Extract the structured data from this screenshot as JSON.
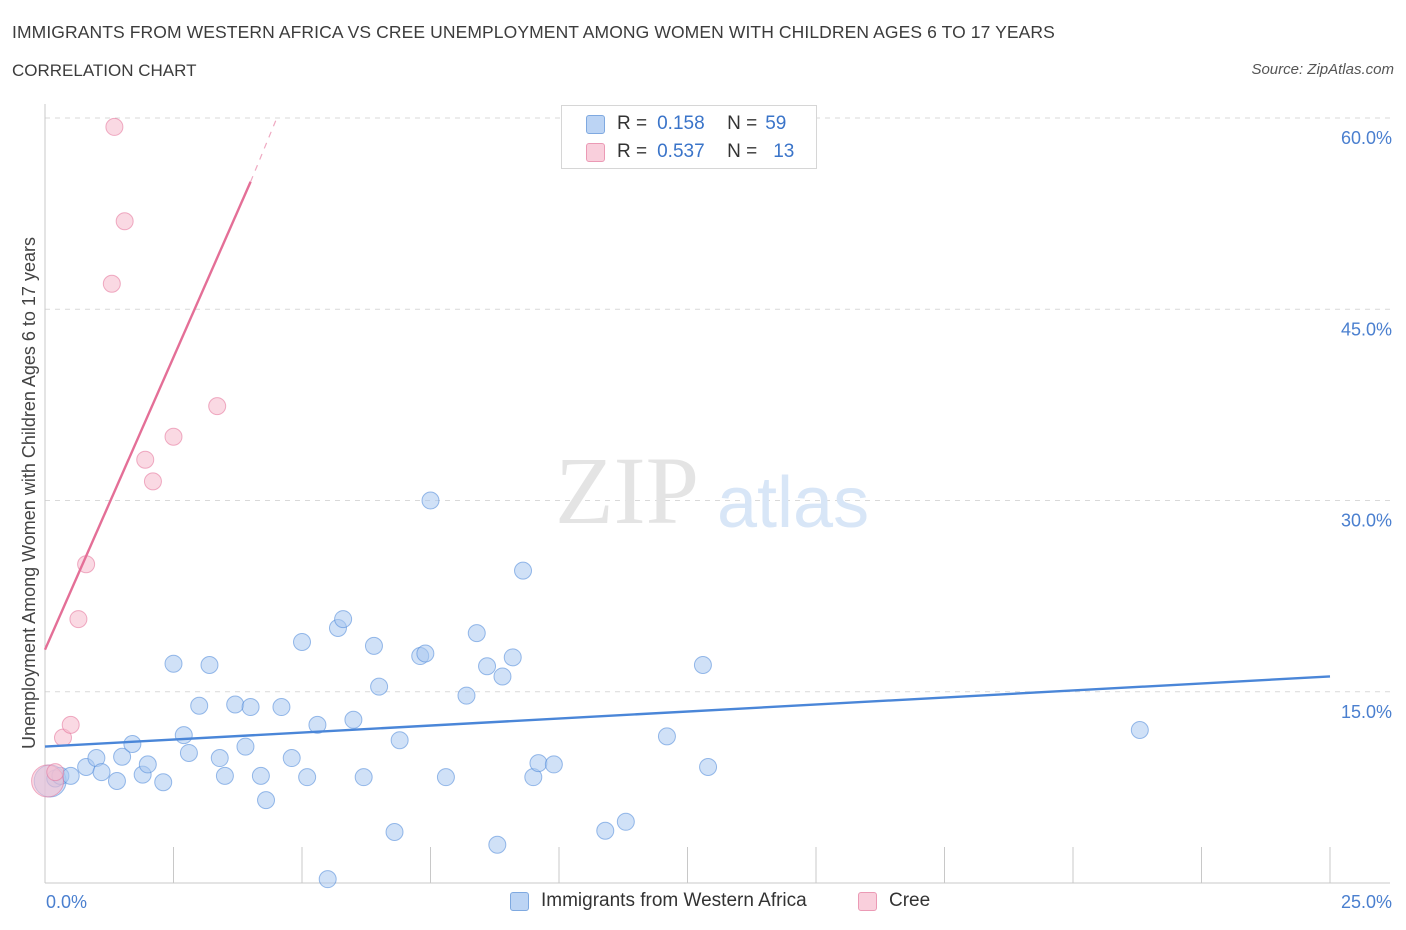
{
  "header": {
    "title": "IMMIGRANTS FROM WESTERN AFRICA VS CREE UNEMPLOYMENT AMONG WOMEN WITH CHILDREN AGES 6 TO 17 YEARS",
    "subtitle": "CORRELATION CHART",
    "source": "Source: ZipAtlas.com"
  },
  "legend": {
    "rows": [
      {
        "r_label": "R =",
        "r_value": "0.158",
        "n_label": "N =",
        "n_value": "59",
        "color": "#a9c8f0"
      },
      {
        "r_label": "R =",
        "r_value": "0.537",
        "n_label": "N =",
        "n_value": "13",
        "color": "#f6bfd0"
      }
    ]
  },
  "watermark": {
    "zip": "ZIP",
    "atlas": "atlas"
  },
  "chart_data": {
    "type": "scatter",
    "ylabel": "Unemployment Among Women with Children Ages 6 to 17 years",
    "xlim": [
      0,
      25
    ],
    "ylim": [
      0,
      60
    ],
    "x_tick_labels": [
      "0.0%",
      "25.0%"
    ],
    "y_tick_labels": [
      {
        "value": 15,
        "label": "15.0%"
      },
      {
        "value": 30,
        "label": "30.0%"
      },
      {
        "value": 45,
        "label": "45.0%"
      },
      {
        "value": 60,
        "label": "60.0%"
      }
    ],
    "grid": true,
    "series": [
      {
        "name": "Immigrants from Western Africa",
        "color": "#4a86d8",
        "fill": "#a9c8f0",
        "points": [
          [
            0.1,
            8.0
          ],
          [
            0.2,
            8.2
          ],
          [
            0.3,
            8.4
          ],
          [
            0.5,
            8.4
          ],
          [
            0.8,
            9.1
          ],
          [
            1.0,
            9.8
          ],
          [
            1.1,
            8.7
          ],
          [
            1.4,
            8.0
          ],
          [
            1.5,
            9.9
          ],
          [
            1.7,
            10.9
          ],
          [
            1.9,
            8.5
          ],
          [
            2.0,
            9.3
          ],
          [
            2.3,
            7.9
          ],
          [
            2.5,
            17.2
          ],
          [
            2.7,
            11.6
          ],
          [
            2.8,
            10.2
          ],
          [
            3.0,
            13.9
          ],
          [
            3.2,
            17.1
          ],
          [
            3.4,
            9.8
          ],
          [
            3.5,
            8.4
          ],
          [
            3.7,
            14.0
          ],
          [
            3.9,
            10.7
          ],
          [
            4.0,
            13.8
          ],
          [
            4.2,
            8.4
          ],
          [
            4.3,
            6.5
          ],
          [
            4.6,
            13.8
          ],
          [
            4.8,
            9.8
          ],
          [
            5.0,
            18.9
          ],
          [
            5.1,
            8.3
          ],
          [
            5.3,
            12.4
          ],
          [
            5.5,
            0.3
          ],
          [
            5.7,
            20.0
          ],
          [
            5.8,
            20.7
          ],
          [
            6.0,
            12.8
          ],
          [
            6.2,
            8.3
          ],
          [
            6.4,
            18.6
          ],
          [
            6.5,
            15.4
          ],
          [
            6.8,
            4.0
          ],
          [
            6.9,
            11.2
          ],
          [
            7.3,
            17.8
          ],
          [
            7.4,
            18.0
          ],
          [
            7.8,
            8.3
          ],
          [
            8.2,
            14.7
          ],
          [
            8.4,
            19.6
          ],
          [
            8.6,
            17.0
          ],
          [
            8.8,
            3.0
          ],
          [
            8.9,
            16.2
          ],
          [
            9.1,
            17.7
          ],
          [
            9.3,
            24.5
          ],
          [
            9.5,
            8.3
          ],
          [
            9.6,
            9.4
          ],
          [
            9.9,
            9.3
          ],
          [
            10.9,
            4.1
          ],
          [
            11.3,
            4.8
          ],
          [
            12.1,
            11.5
          ],
          [
            12.8,
            17.1
          ],
          [
            12.9,
            9.1
          ],
          [
            21.3,
            12.0
          ],
          [
            7.5,
            30.0
          ]
        ],
        "trend": {
          "x": [
            0,
            25
          ],
          "y": [
            10.7,
            16.2
          ]
        }
      },
      {
        "name": "Cree",
        "color": "#e46f97",
        "fill": "#f6bfd0",
        "points": [
          [
            0.05,
            8.0
          ],
          [
            0.2,
            8.7
          ],
          [
            0.35,
            11.4
          ],
          [
            0.5,
            12.4
          ],
          [
            0.65,
            20.7
          ],
          [
            0.8,
            25.0
          ],
          [
            1.3,
            47.0
          ],
          [
            1.35,
            59.3
          ],
          [
            1.55,
            51.9
          ],
          [
            1.95,
            33.2
          ],
          [
            2.1,
            31.5
          ],
          [
            2.5,
            35.0
          ],
          [
            3.35,
            37.4
          ]
        ],
        "trend": {
          "x": [
            0,
            4.0
          ],
          "y": [
            18.3,
            55.0
          ]
        },
        "trend_extension": {
          "x": [
            4.0,
            4.5
          ],
          "y": [
            55.0,
            59.9
          ]
        }
      }
    ],
    "legend_position": "top-center"
  }
}
